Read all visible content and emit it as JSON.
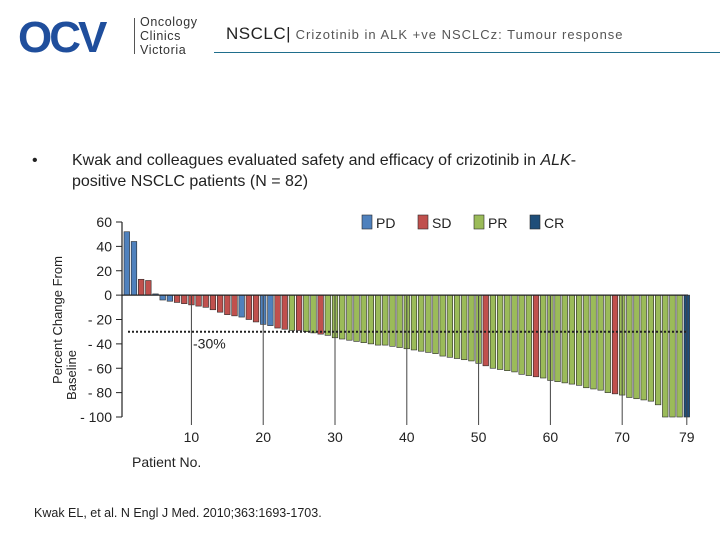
{
  "header": {
    "logo": {
      "mark": "OCV",
      "lines": [
        "Oncology",
        "Clinics",
        "Victoria"
      ]
    },
    "title_main": "NSCLC|",
    "title_sub": " Crizotinib in ALK +ve NSCLCz: Tumour response"
  },
  "bullet": {
    "line1_pre": "Kwak and colleagues evaluated safety and efficacy of crizotinib in ",
    "line1_italic": "ALK",
    "line1_post": "-",
    "line2": "positive NSCLC patients (N = 82)"
  },
  "citation": "Kwak EL, et al. N Engl J Med. 2010;363:1693-1703.",
  "colors": {
    "PD": "#4f81bd",
    "SD": "#c0504d",
    "PR": "#9bbb59",
    "CR": "#1f4e79",
    "brand": "#1f4e9c",
    "rule": "#1f6e8c"
  },
  "chart_data": {
    "type": "bar",
    "ylabel": "Percent Change From Baseline",
    "xlabel": "Patient No.",
    "ylim": [
      -100,
      60
    ],
    "yticks": [
      "60",
      "40",
      "20",
      "0",
      "- 20",
      "- 40",
      "- 60",
      "- 80",
      "- 100"
    ],
    "ytick_values": [
      60,
      40,
      20,
      0,
      -20,
      -40,
      -60,
      -80,
      -100
    ],
    "xticks": [
      "10",
      "20",
      "30",
      "40",
      "50",
      "60",
      "70",
      "79"
    ],
    "xtick_positions": [
      10,
      20,
      30,
      40,
      50,
      60,
      70,
      79
    ],
    "threshold": {
      "value": -30,
      "label": "-30%"
    },
    "legend": [
      "PD",
      "SD",
      "PR",
      "CR"
    ],
    "legend_position": "top-right",
    "patients": [
      1,
      2,
      3,
      4,
      5,
      6,
      7,
      8,
      9,
      10,
      11,
      12,
      13,
      14,
      15,
      16,
      17,
      18,
      19,
      20,
      21,
      22,
      23,
      24,
      25,
      26,
      27,
      28,
      29,
      30,
      31,
      32,
      33,
      34,
      35,
      36,
      37,
      38,
      39,
      40,
      41,
      42,
      43,
      44,
      45,
      46,
      47,
      48,
      49,
      50,
      51,
      52,
      53,
      54,
      55,
      56,
      57,
      58,
      59,
      60,
      61,
      62,
      63,
      64,
      65,
      66,
      67,
      68,
      69,
      70,
      71,
      72,
      73,
      74,
      75,
      76,
      77,
      78,
      79
    ],
    "values": [
      52,
      44,
      13,
      12,
      1,
      -4,
      -5,
      -6,
      -7,
      -8,
      -9,
      -10,
      -12,
      -14,
      -16,
      -17,
      -18,
      -20,
      -22,
      -24,
      -25,
      -27,
      -28,
      -29,
      -29,
      -30,
      -31,
      -32,
      -33,
      -35,
      -36,
      -37,
      -38,
      -39,
      -40,
      -41,
      -41,
      -42,
      -43,
      -44,
      -45,
      -46,
      -47,
      -48,
      -50,
      -51,
      -52,
      -53,
      -54,
      -56,
      -58,
      -60,
      -61,
      -62,
      -63,
      -65,
      -66,
      -67,
      -68,
      -70,
      -71,
      -72,
      -73,
      -74,
      -76,
      -77,
      -78,
      -80,
      -81,
      -82,
      -84,
      -85,
      -86,
      -87,
      -90,
      -100,
      -100,
      -100,
      -100
    ],
    "categories": [
      "PD",
      "PD",
      "SD",
      "SD",
      "PD",
      "PD",
      "PD",
      "SD",
      "SD",
      "SD",
      "SD",
      "SD",
      "SD",
      "SD",
      "SD",
      "SD",
      "PD",
      "SD",
      "SD",
      "PD",
      "PD",
      "SD",
      "SD",
      "PR",
      "SD",
      "PR",
      "PR",
      "SD",
      "PR",
      "PR",
      "PR",
      "PR",
      "PR",
      "PR",
      "PR",
      "PR",
      "PR",
      "PR",
      "PR",
      "PR",
      "PR",
      "PR",
      "PR",
      "PR",
      "PR",
      "PR",
      "PR",
      "PR",
      "PR",
      "PR",
      "SD",
      "PR",
      "PR",
      "PR",
      "PR",
      "PR",
      "PR",
      "SD",
      "PR",
      "PR",
      "PR",
      "PR",
      "PR",
      "PR",
      "PR",
      "PR",
      "PR",
      "PR",
      "SD",
      "PR",
      "PR",
      "PR",
      "PR",
      "PR",
      "PR",
      "PR",
      "PR",
      "PR",
      "CR"
    ]
  }
}
